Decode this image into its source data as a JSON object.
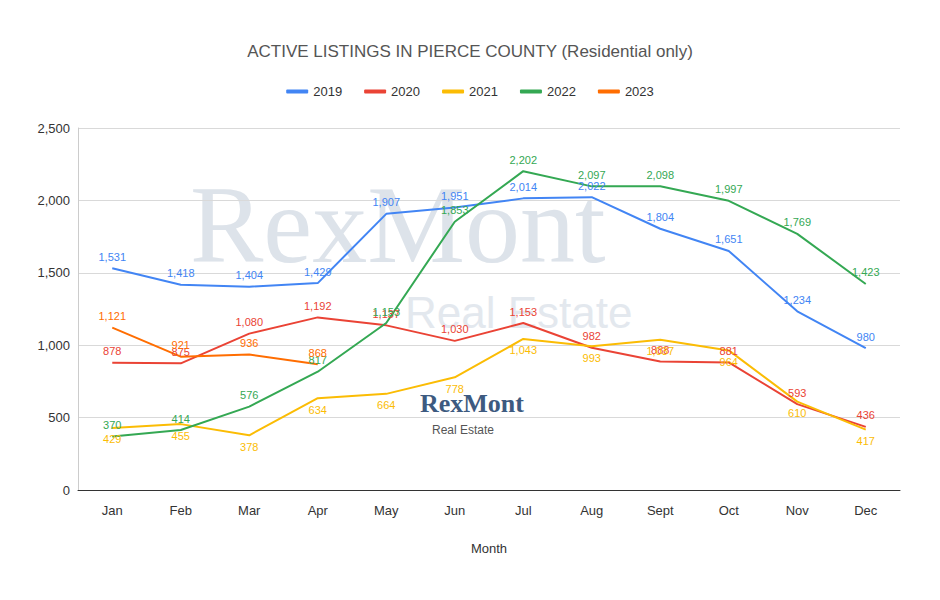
{
  "chart_data": {
    "type": "line",
    "title": "ACTIVE LISTINGS IN PIERCE COUNTY (Residential only)",
    "x_label": "Month",
    "annotations": [
      "RexMont",
      "Real Estate"
    ],
    "categories": [
      "Jan",
      "Feb",
      "Mar",
      "Apr",
      "May",
      "Jun",
      "Jul",
      "Aug",
      "Sept",
      "Oct",
      "Nov",
      "Dec"
    ],
    "series": [
      {
        "name": "2019",
        "color": "#4285f4",
        "values": [
          1531,
          1418,
          1404,
          1429,
          1907,
          1951,
          2014,
          2022,
          1804,
          1651,
          1234,
          980
        ],
        "value_labels": [
          "1,531",
          "1,418",
          "1,404",
          "1,429",
          "1,907",
          "1,951",
          "2,014",
          "2,022",
          "1,804",
          "1,651",
          "1,234",
          "980"
        ]
      },
      {
        "name": "2020",
        "color": "#ea4335",
        "values": [
          878,
          875,
          1080,
          1192,
          1137,
          1030,
          1153,
          982,
          888,
          881,
          593,
          436
        ],
        "value_labels": [
          "878",
          "875",
          "1,080",
          "1,192",
          "1,137",
          "1,030",
          "1,153",
          "982",
          "888",
          "881",
          "593",
          "436"
        ]
      },
      {
        "name": "2021",
        "color": "#fbbc04",
        "values": [
          429,
          455,
          378,
          634,
          664,
          778,
          1043,
          993,
          1037,
          964,
          610,
          417
        ],
        "value_labels": [
          "429",
          "455",
          "378",
          "634",
          "664",
          "778",
          "1,043",
          "993",
          "1,037",
          "964",
          "610",
          "417"
        ]
      },
      {
        "name": "2022",
        "color": "#34a853",
        "values": [
          370,
          414,
          576,
          817,
          1153,
          1853,
          2202,
          2097,
          2098,
          1997,
          1769,
          1423
        ],
        "value_labels": [
          "370",
          "414",
          "576",
          "817",
          "1,153",
          "1,853",
          "2,202",
          "2,097",
          "2,098",
          "1,997",
          "1,769",
          "1,423"
        ]
      },
      {
        "name": "2023",
        "color": "#ff6d01",
        "values": [
          1121,
          921,
          936,
          868,
          null,
          null,
          null,
          null,
          null,
          null,
          null,
          null
        ],
        "value_labels": [
          "1,121",
          "921",
          "936",
          "868",
          null,
          null,
          null,
          null,
          null,
          null,
          null,
          null
        ]
      }
    ],
    "ylim": [
      0,
      2500
    ],
    "yticks": [
      0,
      500,
      {
        "value": 1000,
        "label": "1,000"
      },
      {
        "value": 1500,
        "label": "1,500"
      },
      {
        "value": 2000,
        "label": "2,000"
      },
      {
        "value": 2500,
        "label": "2,500"
      }
    ],
    "grid": true,
    "legend": "top",
    "data_labels": true
  }
}
